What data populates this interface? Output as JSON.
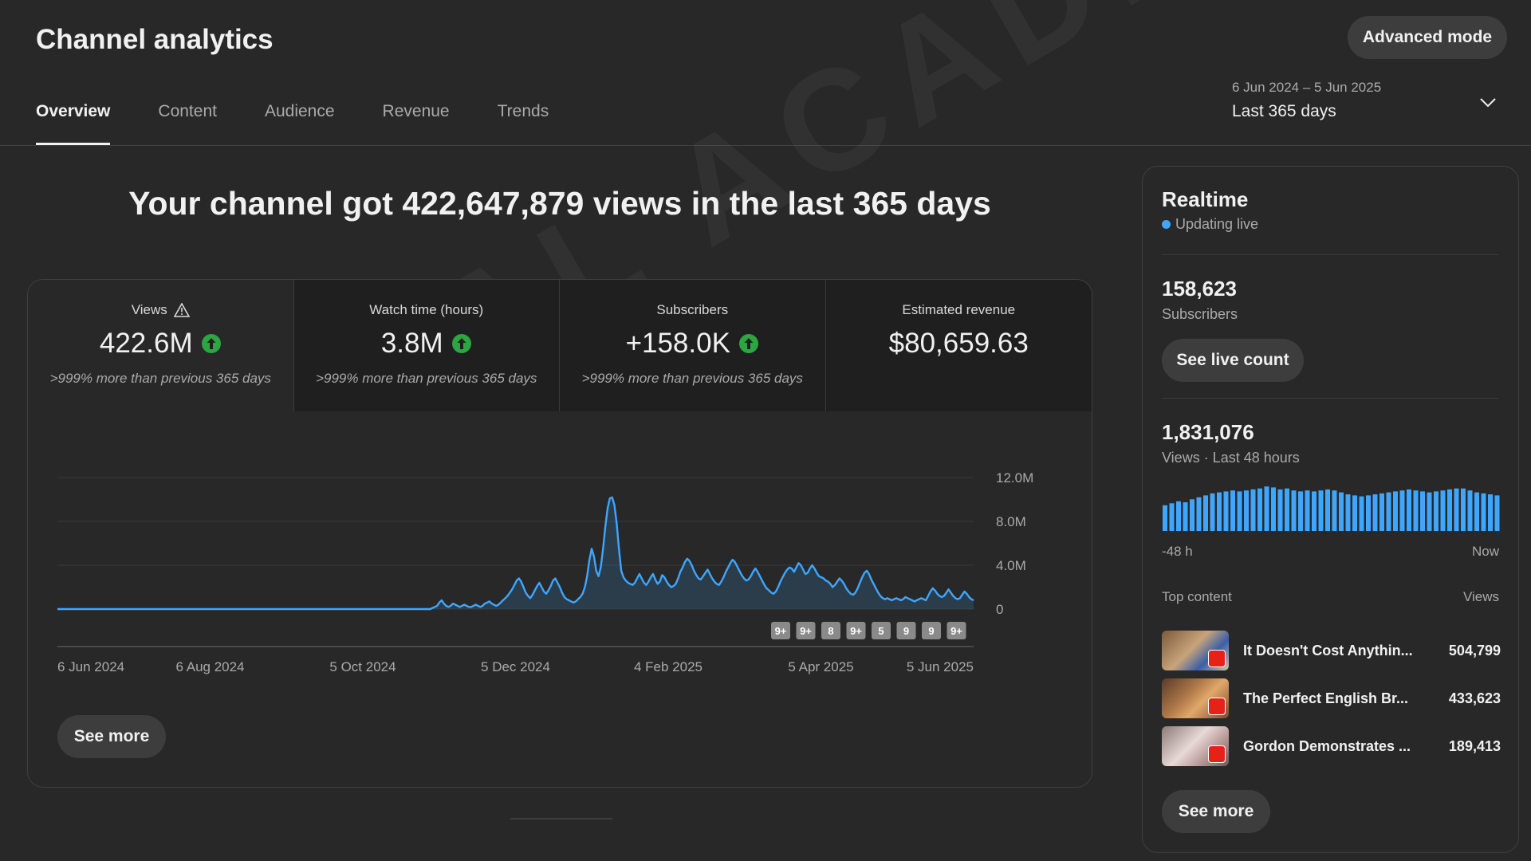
{
  "header": {
    "title": "Channel analytics",
    "advanced_mode_label": "Advanced mode"
  },
  "tabs": [
    {
      "label": "Overview",
      "active": true
    },
    {
      "label": "Content",
      "active": false
    },
    {
      "label": "Audience",
      "active": false
    },
    {
      "label": "Revenue",
      "active": false
    },
    {
      "label": "Trends",
      "active": false
    }
  ],
  "date_range": {
    "range": "6 Jun 2024 – 5 Jun 2025",
    "period": "Last 365 days"
  },
  "headline": "Your channel got 422,647,879 views in the last 365 days",
  "metrics": [
    {
      "label": "Views",
      "value": "422.6M",
      "note": ">999% more than previous 365 days"
    },
    {
      "label": "Watch time (hours)",
      "value": "3.8M",
      "note": ">999% more than previous 365 days"
    },
    {
      "label": "Subscribers",
      "value": "+158.0K",
      "note": ">999% more than previous 365 days"
    },
    {
      "label": "Estimated revenue",
      "value": "$80,659.63",
      "note": ""
    }
  ],
  "main_see_more_label": "See more",
  "chart_data": {
    "type": "area",
    "title": "Views",
    "x_labels": [
      "6 Jun 2024",
      "6 Aug 2024",
      "5 Oct 2024",
      "5 Dec 2024",
      "4 Feb 2025",
      "5 Apr 2025",
      "5 Jun 2025"
    ],
    "y_ticks": [
      "12.0M",
      "8.0M",
      "4.0M",
      "0"
    ],
    "ylim": [
      0,
      12000000
    ],
    "markers": [
      "9+",
      "9+",
      "8",
      "9+",
      "5",
      "9",
      "9",
      "9+"
    ],
    "series": [
      {
        "name": "Views",
        "values": [
          0,
          0,
          0,
          0,
          0,
          0,
          0,
          0,
          0,
          0,
          0,
          0,
          0,
          0,
          0,
          0,
          0,
          0,
          0,
          0,
          0,
          0,
          0,
          0,
          0,
          0,
          0,
          0,
          0,
          0,
          0,
          0,
          0,
          0,
          0,
          0,
          0,
          0,
          0,
          0,
          0,
          0,
          0,
          0,
          0,
          0,
          0,
          0,
          0,
          0,
          0,
          0,
          0,
          0,
          0,
          0,
          0,
          0,
          0,
          0,
          0,
          0,
          0,
          0,
          0,
          0,
          0,
          0,
          0,
          0,
          0,
          0,
          0,
          0,
          0,
          0,
          0,
          0,
          0,
          0,
          0,
          0,
          0,
          0,
          0,
          0,
          0,
          0,
          0,
          0,
          0,
          0,
          0,
          0,
          0,
          0,
          0,
          0,
          0,
          0,
          0,
          0,
          0,
          0,
          0,
          0,
          0,
          0,
          0,
          0,
          0,
          0,
          0,
          0,
          0,
          0,
          0,
          0,
          0,
          0,
          0,
          0,
          0,
          0,
          0,
          0,
          0,
          0,
          0,
          0,
          0,
          0,
          0,
          0,
          0,
          0,
          0,
          0,
          0,
          0,
          0,
          0,
          0,
          0,
          0,
          0,
          0,
          0,
          0,
          0,
          0,
          0,
          0,
          0,
          0,
          0,
          0,
          0,
          0,
          0,
          0,
          0,
          0,
          0,
          0,
          100000,
          200000,
          300000,
          600000,
          800000,
          500000,
          300000,
          200000,
          300000,
          500000,
          400000,
          300000,
          200000,
          300000,
          400000,
          300000,
          200000,
          200000,
          300000,
          400000,
          300000,
          200000,
          300000,
          500000,
          600000,
          700000,
          500000,
          400000,
          300000,
          400000,
          600000,
          800000,
          1000000,
          1200000,
          1500000,
          1800000,
          2200000,
          2600000,
          2800000,
          2500000,
          2000000,
          1500000,
          1200000,
          1000000,
          1300000,
          1700000,
          2100000,
          2400000,
          2000000,
          1600000,
          1400000,
          1700000,
          2100000,
          2600000,
          2800000,
          2400000,
          2000000,
          1500000,
          1100000,
          900000,
          800000,
          700000,
          600000,
          700000,
          900000,
          1100000,
          1400000,
          2000000,
          3000000,
          4500000,
          5500000,
          4800000,
          3500000,
          3000000,
          3800000,
          5500000,
          7500000,
          9200000,
          10100000,
          10200000,
          9500000,
          7800000,
          5500000,
          3500000,
          2900000,
          2600000,
          2400000,
          2300000,
          2200000,
          2400000,
          2800000,
          3200000,
          2800000,
          2400000,
          2200000,
          2500000,
          2900000,
          3200000,
          2700000,
          2300000,
          2500000,
          3100000,
          2900000,
          2500000,
          2200000,
          2000000,
          2100000,
          2300000,
          2800000,
          3400000,
          3800000,
          4300000,
          4600000,
          4400000,
          4000000,
          3500000,
          3100000,
          2800000,
          2700000,
          3000000,
          3300000,
          3600000,
          3200000,
          2800000,
          2500000,
          2300000,
          2200000,
          2500000,
          2900000,
          3400000,
          3800000,
          4200000,
          4500000,
          4300000,
          3900000,
          3500000,
          3100000,
          2800000,
          2600000,
          2700000,
          3000000,
          3400000,
          3700000,
          3400000,
          3000000,
          2600000,
          2200000,
          1900000,
          1700000,
          1500000,
          1400000,
          1600000,
          2000000,
          2500000,
          2900000,
          3300000,
          3600000,
          3800000,
          3700000,
          3400000,
          3800000,
          4200000,
          4000000,
          3600000,
          3200000,
          3300000,
          3700000,
          4000000,
          3700000,
          3300000,
          3000000,
          2900000,
          2800000,
          2600000,
          2500000,
          2300000,
          2000000,
          2200000,
          2500000,
          2800000,
          2600000,
          2300000,
          1900000,
          1600000,
          1400000,
          1300000,
          1500000,
          1900000,
          2400000,
          2900000,
          3300000,
          3500000,
          3200000,
          2700000,
          2300000,
          1900000,
          1500000,
          1200000,
          1000000,
          900000,
          1000000,
          900000,
          800000,
          900000,
          1000000,
          900000,
          800000,
          900000,
          1100000,
          1000000,
          900000,
          800000,
          700000,
          800000,
          900000,
          1000000,
          900000,
          800000,
          1200000,
          1600000,
          1900000,
          1700000,
          1400000,
          1200000,
          1100000,
          1200000,
          1500000,
          1800000,
          1500000,
          1200000,
          1000000,
          900000,
          1000000,
          1300000,
          1600000,
          1400000,
          1100000,
          900000,
          800000
        ]
      }
    ]
  },
  "realtime": {
    "title": "Realtime",
    "live_label": "Updating live",
    "subscribers_value": "158,623",
    "subscribers_label": "Subscribers",
    "see_live_label": "See live count",
    "views_value": "1,831,076",
    "views_label": "Views · Last 48 hours",
    "axis_start": "-48 h",
    "axis_end": "Now",
    "hourly_views": [
      52,
      56,
      60,
      58,
      64,
      68,
      72,
      76,
      78,
      80,
      82,
      80,
      82,
      84,
      86,
      90,
      88,
      84,
      86,
      82,
      80,
      82,
      80,
      82,
      84,
      82,
      78,
      74,
      72,
      70,
      72,
      74,
      76,
      78,
      80,
      82,
      84,
      82,
      80,
      78,
      80,
      82,
      84,
      86,
      86,
      82,
      78,
      76,
      74,
      72
    ],
    "top_content_label": "Top content",
    "views_col_label": "Views",
    "top_content": [
      {
        "title": "It Doesn't Cost Anythin...",
        "views": "504,799"
      },
      {
        "title": "The Perfect English Br...",
        "views": "433,623"
      },
      {
        "title": "Gordon Demonstrates ...",
        "views": "189,413"
      }
    ],
    "see_more_label": "See more"
  },
  "watermark": "VIRAL ACADEMY",
  "colors": {
    "background": "#282828",
    "accent": "#3ea6ff",
    "positive": "#2ba640",
    "live": "#3ea6ff"
  }
}
